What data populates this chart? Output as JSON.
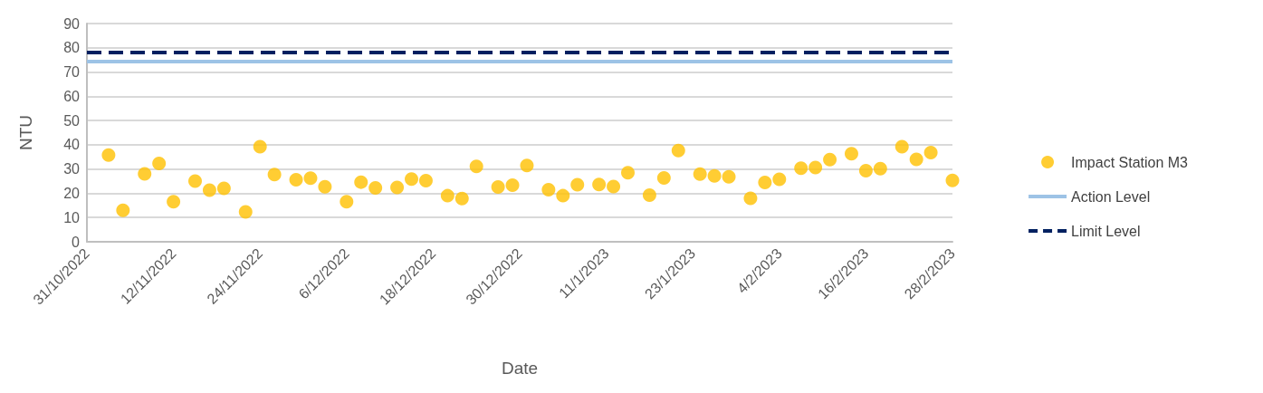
{
  "chart_data": {
    "type": "scatter",
    "xlabel": "Date",
    "ylabel": "NTU",
    "x": [
      "2022-11-03",
      "2022-11-05",
      "2022-11-08",
      "2022-11-10",
      "2022-11-12",
      "2022-11-15",
      "2022-11-17",
      "2022-11-19",
      "2022-11-22",
      "2022-11-24",
      "2022-11-26",
      "2022-11-29",
      "2022-12-01",
      "2022-12-03",
      "2022-12-06",
      "2022-12-08",
      "2022-12-10",
      "2022-12-13",
      "2022-12-15",
      "2022-12-17",
      "2022-12-20",
      "2022-12-22",
      "2022-12-24",
      "2022-12-27",
      "2022-12-29",
      "2022-12-31",
      "2023-01-03",
      "2023-01-05",
      "2023-01-07",
      "2023-01-10",
      "2023-01-12",
      "2023-01-14",
      "2023-01-17",
      "2023-01-19",
      "2023-01-21",
      "2023-01-24",
      "2023-01-26",
      "2023-01-28",
      "2023-01-31",
      "2023-02-02",
      "2023-02-04",
      "2023-02-07",
      "2023-02-09",
      "2023-02-11",
      "2023-02-14",
      "2023-02-16",
      "2023-02-18",
      "2023-02-21",
      "2023-02-23",
      "2023-02-25",
      "2023-02-28"
    ],
    "series": [
      {
        "name": "Impact Station M3",
        "color": "#ffc000",
        "values": [
          35.8,
          13,
          28,
          32.3,
          16.5,
          25,
          21.3,
          22,
          12.3,
          39.2,
          27.7,
          25.6,
          26.2,
          22.7,
          16.5,
          24.6,
          22.2,
          22.4,
          25.9,
          25.2,
          19,
          17.8,
          31.1,
          22.6,
          23.3,
          31.5,
          21.5,
          19,
          23.5,
          23.6,
          22.8,
          28.5,
          19.2,
          26.3,
          37.6,
          27.9,
          27.2,
          26.8,
          17.9,
          24.5,
          25.8,
          30.3,
          30.6,
          33.9,
          36.3,
          29.3,
          30.2,
          39.2,
          34,
          36.8,
          25.3
        ]
      }
    ],
    "ref_lines": [
      {
        "axis": "y",
        "value": 74.5,
        "label": "Action Level",
        "color": "#9dc3e6",
        "line_style": "solid"
      },
      {
        "axis": "y",
        "value": 78,
        "label": "Limit Level",
        "color": "#002060",
        "line_style": "dashed"
      }
    ],
    "xlim": [
      "2022-10-31",
      "2023-02-28"
    ],
    "xticks": [
      {
        "value": "2022-10-31",
        "label": "31/10/2022"
      },
      {
        "value": "2022-11-12",
        "label": "12/11/2022"
      },
      {
        "value": "2022-11-24",
        "label": "24/11/2022"
      },
      {
        "value": "2022-12-06",
        "label": "6/12/2022"
      },
      {
        "value": "2022-12-18",
        "label": "18/12/2022"
      },
      {
        "value": "2022-12-30",
        "label": "30/12/2022"
      },
      {
        "value": "2023-01-11",
        "label": "11/1/2023"
      },
      {
        "value": "2023-01-23",
        "label": "23/1/2023"
      },
      {
        "value": "2023-02-04",
        "label": "4/2/2023"
      },
      {
        "value": "2023-02-16",
        "label": "16/2/2023"
      },
      {
        "value": "2023-02-28",
        "label": "28/2/2023"
      }
    ],
    "ylim": [
      0,
      90
    ],
    "yticks": [
      0,
      10,
      20,
      30,
      40,
      50,
      60,
      70,
      80,
      90
    ],
    "grid": "y",
    "legend": "right",
    "marker": "circle"
  }
}
